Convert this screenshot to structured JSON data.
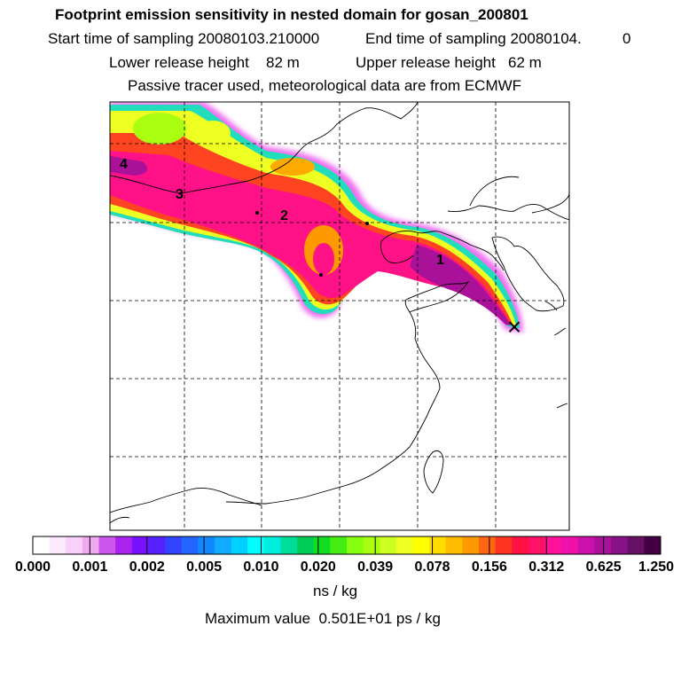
{
  "header": {
    "title": "Footprint emission sensitivity in nested domain for gosan_200801",
    "start_label": "Start time of sampling 20080103.210000",
    "end_label": "End time of sampling 20080104.",
    "end_value": "0",
    "lower_label": "Lower release height",
    "lower_value": "82 m",
    "upper_label": "Upper release height",
    "upper_value": "62 m",
    "tracer_line": "Passive tracer used, meteorological data are from ECMWF"
  },
  "map": {
    "age_markers": [
      "1",
      "2",
      "3",
      "4"
    ],
    "receptor_symbol": "×"
  },
  "legend": {
    "tick_labels": [
      "0.000",
      "0.001",
      "0.002",
      "0.005",
      "0.010",
      "0.020",
      "0.039",
      "0.078",
      "0.156",
      "0.312",
      "0.625",
      "1.250"
    ],
    "units": "ns / kg",
    "max_value_text": "Maximum value  0.501E+01 ps / kg",
    "colors": [
      "#ffffff",
      "#fde9fd",
      "#f9d0f9",
      "#f0a8f0",
      "#cc55ee",
      "#aa22ee",
      "#7711ff",
      "#5522ff",
      "#3344ff",
      "#2266ff",
      "#1188ff",
      "#11aaff",
      "#00d0ff",
      "#00ffff",
      "#00eedd",
      "#00dd99",
      "#00cc55",
      "#11dd22",
      "#44ee11",
      "#88ff11",
      "#aaff11",
      "#ccff22",
      "#eeff22",
      "#ffff00",
      "#ffdd00",
      "#ffbb00",
      "#ff9900",
      "#ff6611",
      "#ff3322",
      "#ff1144",
      "#ff1166",
      "#ff1199",
      "#ee11aa",
      "#cc11aa",
      "#aa1199",
      "#881188",
      "#661166",
      "#440044"
    ]
  }
}
